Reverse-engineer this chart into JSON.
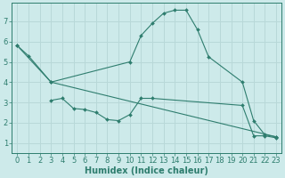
{
  "line1_x": [
    0,
    1,
    3,
    10,
    11,
    12,
    13,
    14,
    15,
    16,
    17,
    20,
    21,
    22,
    23
  ],
  "line1_y": [
    5.8,
    5.3,
    4.0,
    5.0,
    6.3,
    6.9,
    7.4,
    7.55,
    7.55,
    6.6,
    5.25,
    4.0,
    2.1,
    1.4,
    1.3
  ],
  "line2_x": [
    0,
    3,
    23
  ],
  "line2_y": [
    5.8,
    4.0,
    1.3
  ],
  "line3_x": [
    3,
    4,
    5,
    6,
    7,
    8,
    9,
    10,
    11,
    12,
    20,
    21,
    22,
    23
  ],
  "line3_y": [
    3.1,
    3.2,
    2.7,
    2.65,
    2.5,
    2.15,
    2.1,
    2.4,
    3.2,
    3.2,
    2.85,
    1.35,
    1.35,
    1.25
  ],
  "color": "#2e7d6e",
  "bg_color": "#cdeaea",
  "grid_color": "#b8d8d8",
  "xlabel": "Humidex (Indice chaleur)",
  "xlim": [
    -0.5,
    23.5
  ],
  "ylim": [
    0.5,
    7.9
  ],
  "xticks": [
    0,
    1,
    2,
    3,
    4,
    5,
    6,
    7,
    8,
    9,
    10,
    11,
    12,
    13,
    14,
    15,
    16,
    17,
    18,
    19,
    20,
    21,
    22,
    23
  ],
  "yticks": [
    1,
    2,
    3,
    4,
    5,
    6,
    7
  ],
  "xlabel_fontsize": 7,
  "tick_fontsize": 6
}
